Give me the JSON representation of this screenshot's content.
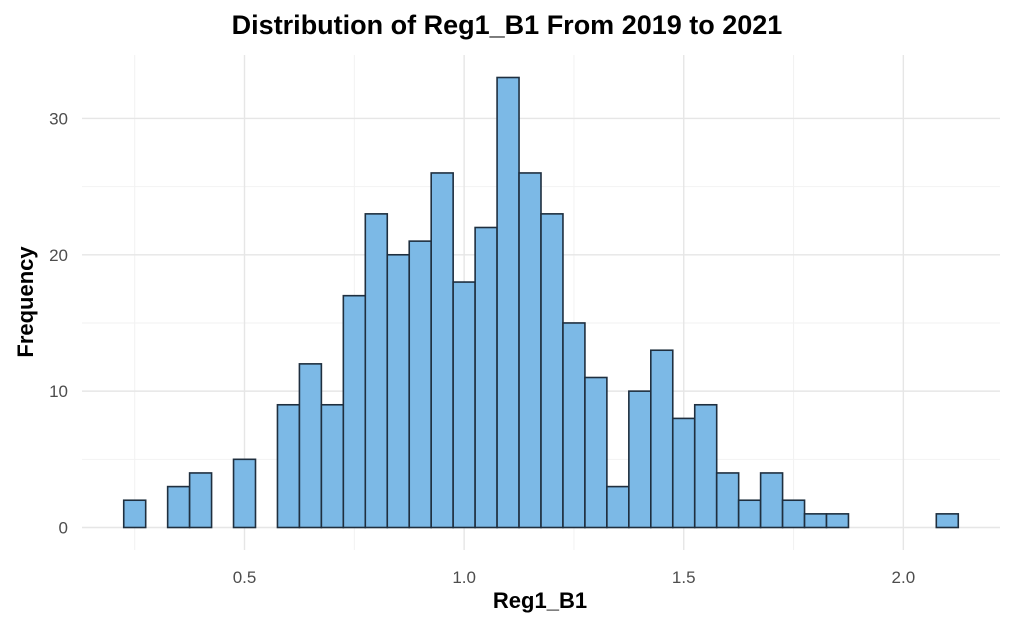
{
  "chart_data": {
    "type": "bar",
    "title": "Distribution of Reg1_B1 From 2019 to 2021",
    "xlabel": "Reg1_B1",
    "ylabel": "Frequency",
    "bin_width": 0.05,
    "bins": [
      {
        "start": 0.225,
        "end": 0.275,
        "count": 2
      },
      {
        "start": 0.275,
        "end": 0.325,
        "count": 0
      },
      {
        "start": 0.325,
        "end": 0.375,
        "count": 3
      },
      {
        "start": 0.375,
        "end": 0.425,
        "count": 4
      },
      {
        "start": 0.425,
        "end": 0.475,
        "count": 0
      },
      {
        "start": 0.475,
        "end": 0.525,
        "count": 5
      },
      {
        "start": 0.525,
        "end": 0.575,
        "count": 0
      },
      {
        "start": 0.575,
        "end": 0.625,
        "count": 9
      },
      {
        "start": 0.625,
        "end": 0.675,
        "count": 12
      },
      {
        "start": 0.675,
        "end": 0.725,
        "count": 9
      },
      {
        "start": 0.725,
        "end": 0.775,
        "count": 17
      },
      {
        "start": 0.775,
        "end": 0.825,
        "count": 23
      },
      {
        "start": 0.825,
        "end": 0.875,
        "count": 20
      },
      {
        "start": 0.875,
        "end": 0.925,
        "count": 21
      },
      {
        "start": 0.925,
        "end": 0.975,
        "count": 26
      },
      {
        "start": 0.975,
        "end": 1.025,
        "count": 18
      },
      {
        "start": 1.025,
        "end": 1.075,
        "count": 22
      },
      {
        "start": 1.075,
        "end": 1.125,
        "count": 33
      },
      {
        "start": 1.125,
        "end": 1.175,
        "count": 26
      },
      {
        "start": 1.175,
        "end": 1.225,
        "count": 23
      },
      {
        "start": 1.225,
        "end": 1.275,
        "count": 15
      },
      {
        "start": 1.275,
        "end": 1.325,
        "count": 11
      },
      {
        "start": 1.325,
        "end": 1.375,
        "count": 3
      },
      {
        "start": 1.375,
        "end": 1.425,
        "count": 10
      },
      {
        "start": 1.425,
        "end": 1.475,
        "count": 13
      },
      {
        "start": 1.475,
        "end": 1.525,
        "count": 8
      },
      {
        "start": 1.525,
        "end": 1.575,
        "count": 9
      },
      {
        "start": 1.575,
        "end": 1.625,
        "count": 4
      },
      {
        "start": 1.625,
        "end": 1.675,
        "count": 2
      },
      {
        "start": 1.675,
        "end": 1.725,
        "count": 4
      },
      {
        "start": 1.725,
        "end": 1.775,
        "count": 2
      },
      {
        "start": 1.775,
        "end": 1.825,
        "count": 1
      },
      {
        "start": 1.825,
        "end": 1.875,
        "count": 1
      },
      {
        "start": 1.875,
        "end": 1.925,
        "count": 0
      },
      {
        "start": 1.925,
        "end": 1.975,
        "count": 0
      },
      {
        "start": 1.975,
        "end": 2.025,
        "count": 0
      },
      {
        "start": 2.025,
        "end": 2.075,
        "count": 0
      },
      {
        "start": 2.075,
        "end": 2.125,
        "count": 1
      }
    ],
    "xticks": [
      "0.5",
      "1.0",
      "1.5",
      "2.0"
    ],
    "yticks": [
      "0",
      "10",
      "20",
      "30"
    ],
    "xlim": [
      0.13,
      2.22
    ],
    "ylim": [
      -1.65,
      34.65
    ],
    "grid": true,
    "legend": "none",
    "bar_fill": "#7cb9e6",
    "bar_stroke": "#1f2f3f"
  }
}
